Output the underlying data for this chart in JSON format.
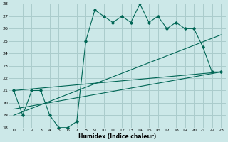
{
  "xlabel": "Humidex (Indice chaleur)",
  "ylabel": "",
  "background_color": "#cce8e8",
  "grid_color": "#aacccc",
  "line_color": "#006655",
  "xlim": [
    -0.5,
    23.5
  ],
  "ylim": [
    18,
    28
  ],
  "yticks": [
    18,
    19,
    20,
    21,
    22,
    23,
    24,
    25,
    26,
    27,
    28
  ],
  "xticks": [
    0,
    1,
    2,
    3,
    4,
    5,
    6,
    7,
    8,
    9,
    10,
    11,
    12,
    13,
    14,
    15,
    16,
    17,
    18,
    19,
    20,
    21,
    22,
    23
  ],
  "main_line_x": [
    0,
    1,
    2,
    3,
    4,
    5,
    6,
    7,
    8,
    9,
    10,
    11,
    12,
    13,
    14,
    15,
    16,
    17,
    18,
    19,
    20,
    21,
    22,
    23
  ],
  "main_line_y": [
    21,
    19,
    21,
    21,
    19,
    18,
    18,
    18.5,
    25,
    27.5,
    27,
    26.5,
    27,
    26.5,
    28,
    26.5,
    27,
    26,
    26.5,
    26,
    26,
    24.5,
    22.5,
    22.5
  ],
  "reg_line1_x": [
    0,
    23
  ],
  "reg_line1_y": [
    21.0,
    22.5
  ],
  "reg_line2_x": [
    0,
    23
  ],
  "reg_line2_y": [
    19.0,
    25.5
  ],
  "reg_line3_x": [
    0,
    23
  ],
  "reg_line3_y": [
    19.5,
    22.5
  ]
}
